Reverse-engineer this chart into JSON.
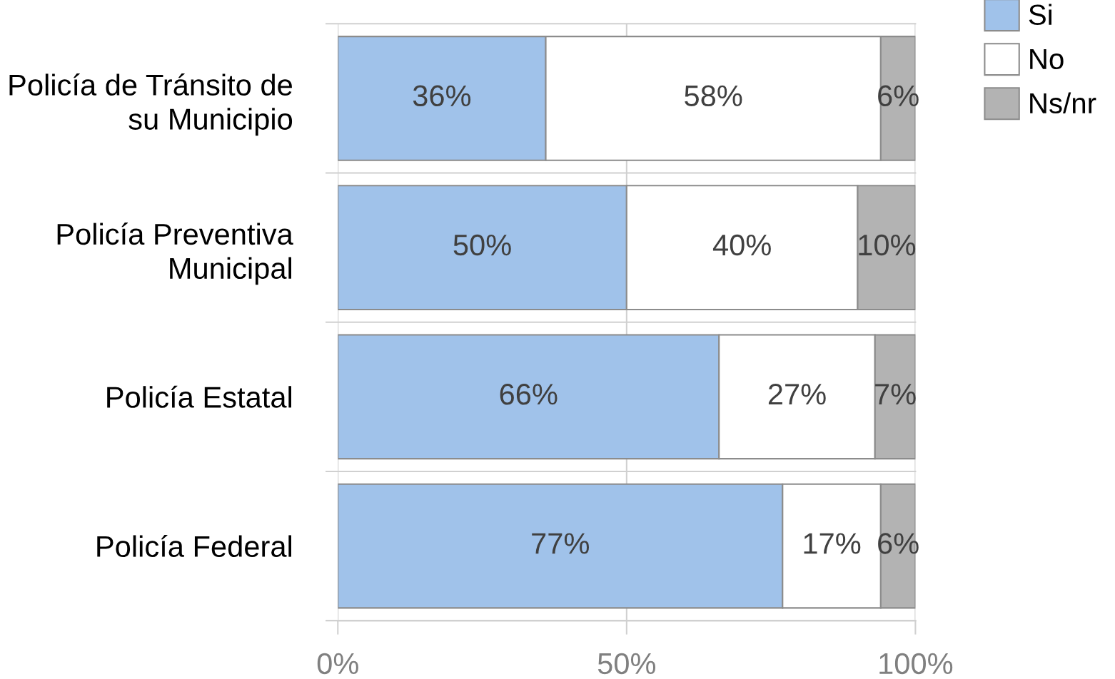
{
  "chart_data": {
    "type": "bar",
    "orientation": "horizontal",
    "stacked": true,
    "categories": [
      "Policía de Tránsito de su Municipio",
      "Policía Preventiva Municipal",
      "Policía Estatal",
      "Policía Federal"
    ],
    "series": [
      {
        "name": "Si",
        "color": "#a0c2ea",
        "values": [
          36,
          50,
          66,
          77
        ],
        "value_labels": [
          "36%",
          "50%",
          "66%",
          "77%"
        ]
      },
      {
        "name": "No",
        "color": "#ffffff",
        "values": [
          58,
          40,
          27,
          17
        ],
        "value_labels": [
          "58%",
          "40%",
          "27%",
          "17%"
        ]
      },
      {
        "name": "Ns/nr",
        "color": "#b3b3b3",
        "values": [
          6,
          10,
          7,
          6
        ],
        "value_labels": [
          "6%",
          "10%",
          "7%",
          "6%"
        ]
      }
    ],
    "xlim": [
      0,
      100
    ],
    "xticks": [
      {
        "value": 0,
        "label": "0%"
      },
      {
        "value": 50,
        "label": "50%"
      },
      {
        "value": 100,
        "label": "100%"
      }
    ],
    "grid": true,
    "legend": "top right"
  }
}
